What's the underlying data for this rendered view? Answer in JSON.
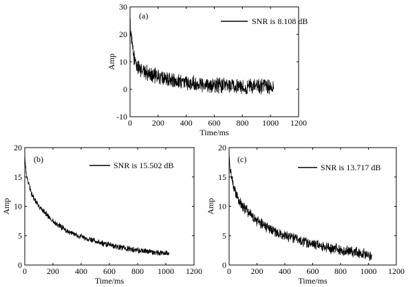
{
  "chart_data": [
    {
      "type": "line",
      "panel_label": "(a)",
      "xlabel": "Time/ms",
      "ylabel": "Amp",
      "xlim": [
        0,
        1200
      ],
      "ylim": [
        -10,
        30
      ],
      "xticks": [
        "0",
        "200",
        "400",
        "600",
        "800",
        "1000",
        "1200"
      ],
      "yticks": [
        "-10",
        "0",
        "10",
        "20",
        "30"
      ],
      "grid": false,
      "legend_position": "top-right",
      "series": [
        {
          "name": "SNR is 8.108 dB",
          "color": "#000000",
          "model": "noisy exponential decay",
          "points": [
            [
              0,
              24
            ],
            [
              10,
              18
            ],
            [
              25,
              12
            ],
            [
              50,
              8.5
            ],
            [
              100,
              6.5
            ],
            [
              200,
              4.5
            ],
            [
              300,
              3.2
            ],
            [
              400,
              2.5
            ],
            [
              500,
              2
            ],
            [
              600,
              1.6
            ],
            [
              700,
              1.3
            ],
            [
              800,
              1.1
            ],
            [
              900,
              0.9
            ],
            [
              1000,
              0.8
            ],
            [
              1024,
              0.8
            ]
          ],
          "noise_amplitude": 3.3
        }
      ]
    },
    {
      "type": "line",
      "panel_label": "(b)",
      "xlabel": "Time/ms",
      "ylabel": "Amp",
      "xlim": [
        0,
        1200
      ],
      "ylim": [
        0,
        20
      ],
      "xticks": [
        "0",
        "200",
        "400",
        "600",
        "800",
        "1000",
        "1200"
      ],
      "yticks": [
        "0",
        "5",
        "10",
        "15",
        "20"
      ],
      "grid": false,
      "legend_position": "top-right",
      "series": [
        {
          "name": "SNR is 15.502 dB",
          "color": "#000000",
          "model": "noisy exponential decay",
          "points": [
            [
              0,
              19
            ],
            [
              10,
              15.5
            ],
            [
              25,
              14
            ],
            [
              50,
              12
            ],
            [
              100,
              10
            ],
            [
              200,
              7.5
            ],
            [
              300,
              5.8
            ],
            [
              400,
              4.8
            ],
            [
              500,
              4
            ],
            [
              600,
              3.4
            ],
            [
              700,
              2.9
            ],
            [
              800,
              2.5
            ],
            [
              900,
              2.2
            ],
            [
              1000,
              2
            ],
            [
              1024,
              1.9
            ]
          ],
          "noise_amplitude": 0.55
        }
      ]
    },
    {
      "type": "line",
      "panel_label": "(c)",
      "xlabel": "Time/ms",
      "ylabel": "Amp",
      "xlim": [
        0,
        1200
      ],
      "ylim": [
        0,
        20
      ],
      "xticks": [
        "0",
        "200",
        "400",
        "600",
        "800",
        "1000",
        "1200"
      ],
      "yticks": [
        "0",
        "5",
        "10",
        "15",
        "20"
      ],
      "grid": false,
      "legend_position": "top-right",
      "series": [
        {
          "name": "SNR is 13.717 dB",
          "color": "#000000",
          "model": "noisy exponential decay",
          "points": [
            [
              0,
              19
            ],
            [
              10,
              16
            ],
            [
              25,
              14
            ],
            [
              50,
              12
            ],
            [
              100,
              10
            ],
            [
              200,
              7.5
            ],
            [
              300,
              6
            ],
            [
              400,
              5
            ],
            [
              500,
              4.2
            ],
            [
              600,
              3.6
            ],
            [
              700,
              3
            ],
            [
              800,
              2.6
            ],
            [
              900,
              2.2
            ],
            [
              1000,
              1.8
            ],
            [
              1024,
              1.2
            ]
          ],
          "noise_amplitude": 1.05
        }
      ]
    }
  ]
}
